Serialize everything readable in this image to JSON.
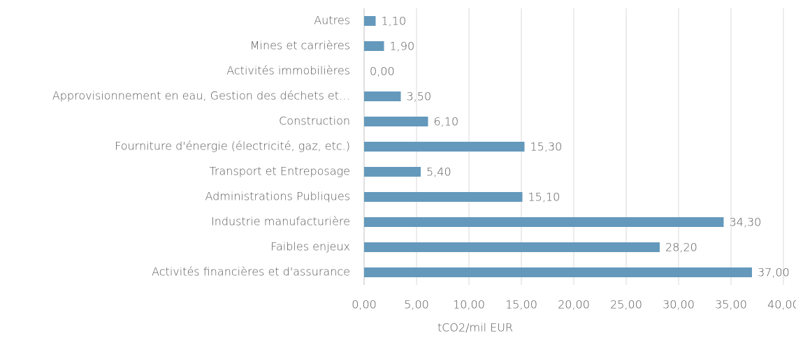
{
  "chart_data": {
    "type": "bar",
    "orientation": "horizontal",
    "categories": [
      "Autres",
      "Mines et carrières",
      "Activités immobilières",
      "Approvisionnement en eau, Gestion des déchets et…",
      "Construction",
      "Fourniture d'énergie (électricité, gaz, etc.)",
      "Transport et Entreposage",
      "Administrations Publiques",
      "Industrie manufacturière",
      "Faibles enjeux",
      "Activités financières et d'assurance"
    ],
    "values": [
      1.1,
      1.9,
      0,
      3.5,
      6.1,
      15.3,
      5.4,
      15.1,
      34.3,
      28.2,
      37
    ],
    "value_labels": [
      "1,10",
      "1,90",
      "0,00",
      "3,50",
      "6,10",
      "15,30",
      "5,40",
      "15,10",
      "34,30",
      "28,20",
      "37,00"
    ],
    "color": "#6499bc",
    "xlabel": "tCO2/mil EUR",
    "xlim": [
      0,
      40
    ],
    "xticks": [
      {
        "value": 0,
        "label": "0,00"
      },
      {
        "value": 5,
        "label": "5,00"
      },
      {
        "value": 10,
        "label": "10,00"
      },
      {
        "value": 15,
        "label": "15,00"
      },
      {
        "value": 20,
        "label": "20,00"
      },
      {
        "value": 25,
        "label": "25,00"
      },
      {
        "value": 30,
        "label": "30,00"
      },
      {
        "value": 35,
        "label": "35,00"
      },
      {
        "value": 40,
        "label": "40,00"
      }
    ],
    "grid": true
  }
}
